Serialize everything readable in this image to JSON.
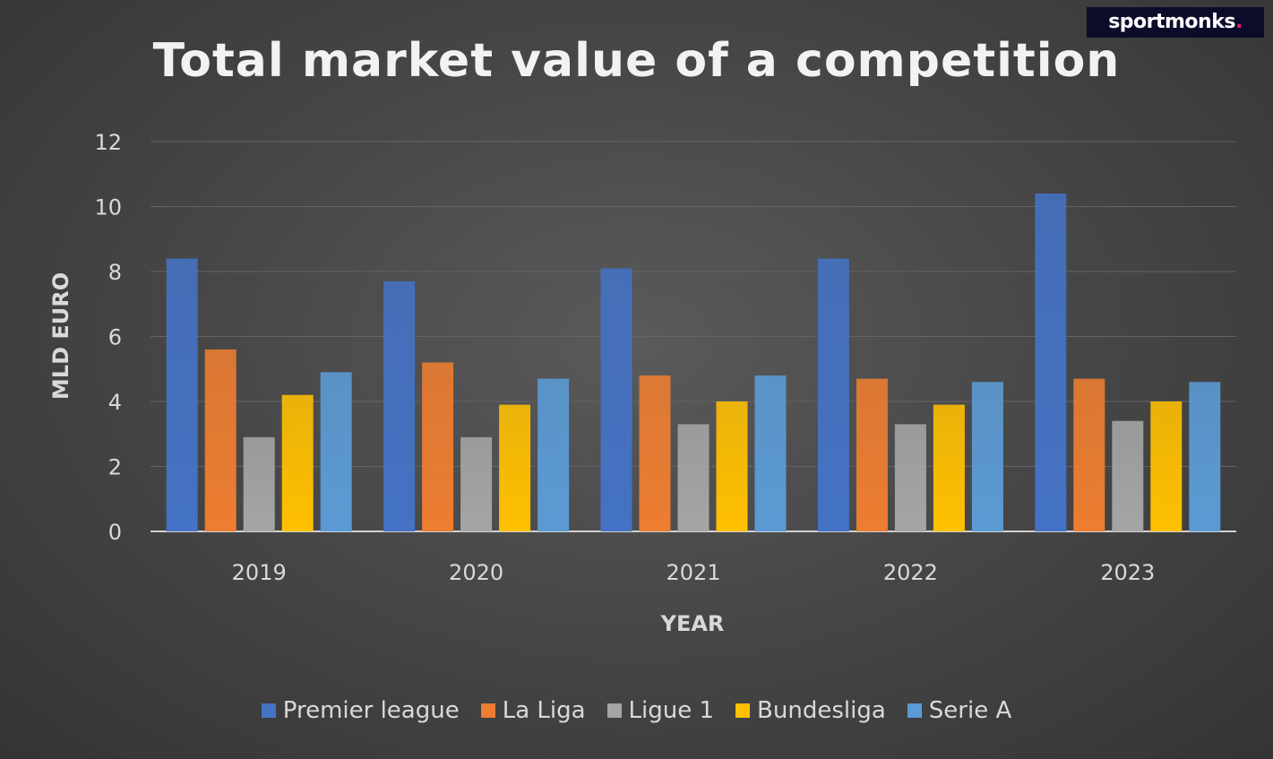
{
  "branding": {
    "logo_text": "sportmonks",
    "logo_dot": "."
  },
  "chart_data": {
    "type": "bar",
    "title": "Total market value of a competition",
    "xlabel": "YEAR",
    "ylabel": "MLD EURO",
    "categories": [
      "2019",
      "2020",
      "2021",
      "2022",
      "2023"
    ],
    "ylim": [
      0,
      12
    ],
    "yticks": [
      0,
      2,
      4,
      6,
      8,
      10,
      12
    ],
    "grid": true,
    "legend_position": "bottom",
    "series": [
      {
        "name": "Premier league",
        "color": "#4472c4",
        "values": [
          8.4,
          7.7,
          8.1,
          8.4,
          10.4
        ]
      },
      {
        "name": "La Liga",
        "color": "#ed7d31",
        "values": [
          5.6,
          5.2,
          4.8,
          4.7,
          4.7
        ]
      },
      {
        "name": "Ligue 1",
        "color": "#a5a5a5",
        "values": [
          2.9,
          2.9,
          3.3,
          3.3,
          3.4
        ]
      },
      {
        "name": "Bundesliga",
        "color": "#ffc000",
        "values": [
          4.2,
          3.9,
          4.0,
          3.9,
          4.0
        ]
      },
      {
        "name": "Serie A",
        "color": "#5b9bd5",
        "values": [
          4.9,
          4.7,
          4.8,
          4.6,
          4.6
        ]
      }
    ]
  }
}
